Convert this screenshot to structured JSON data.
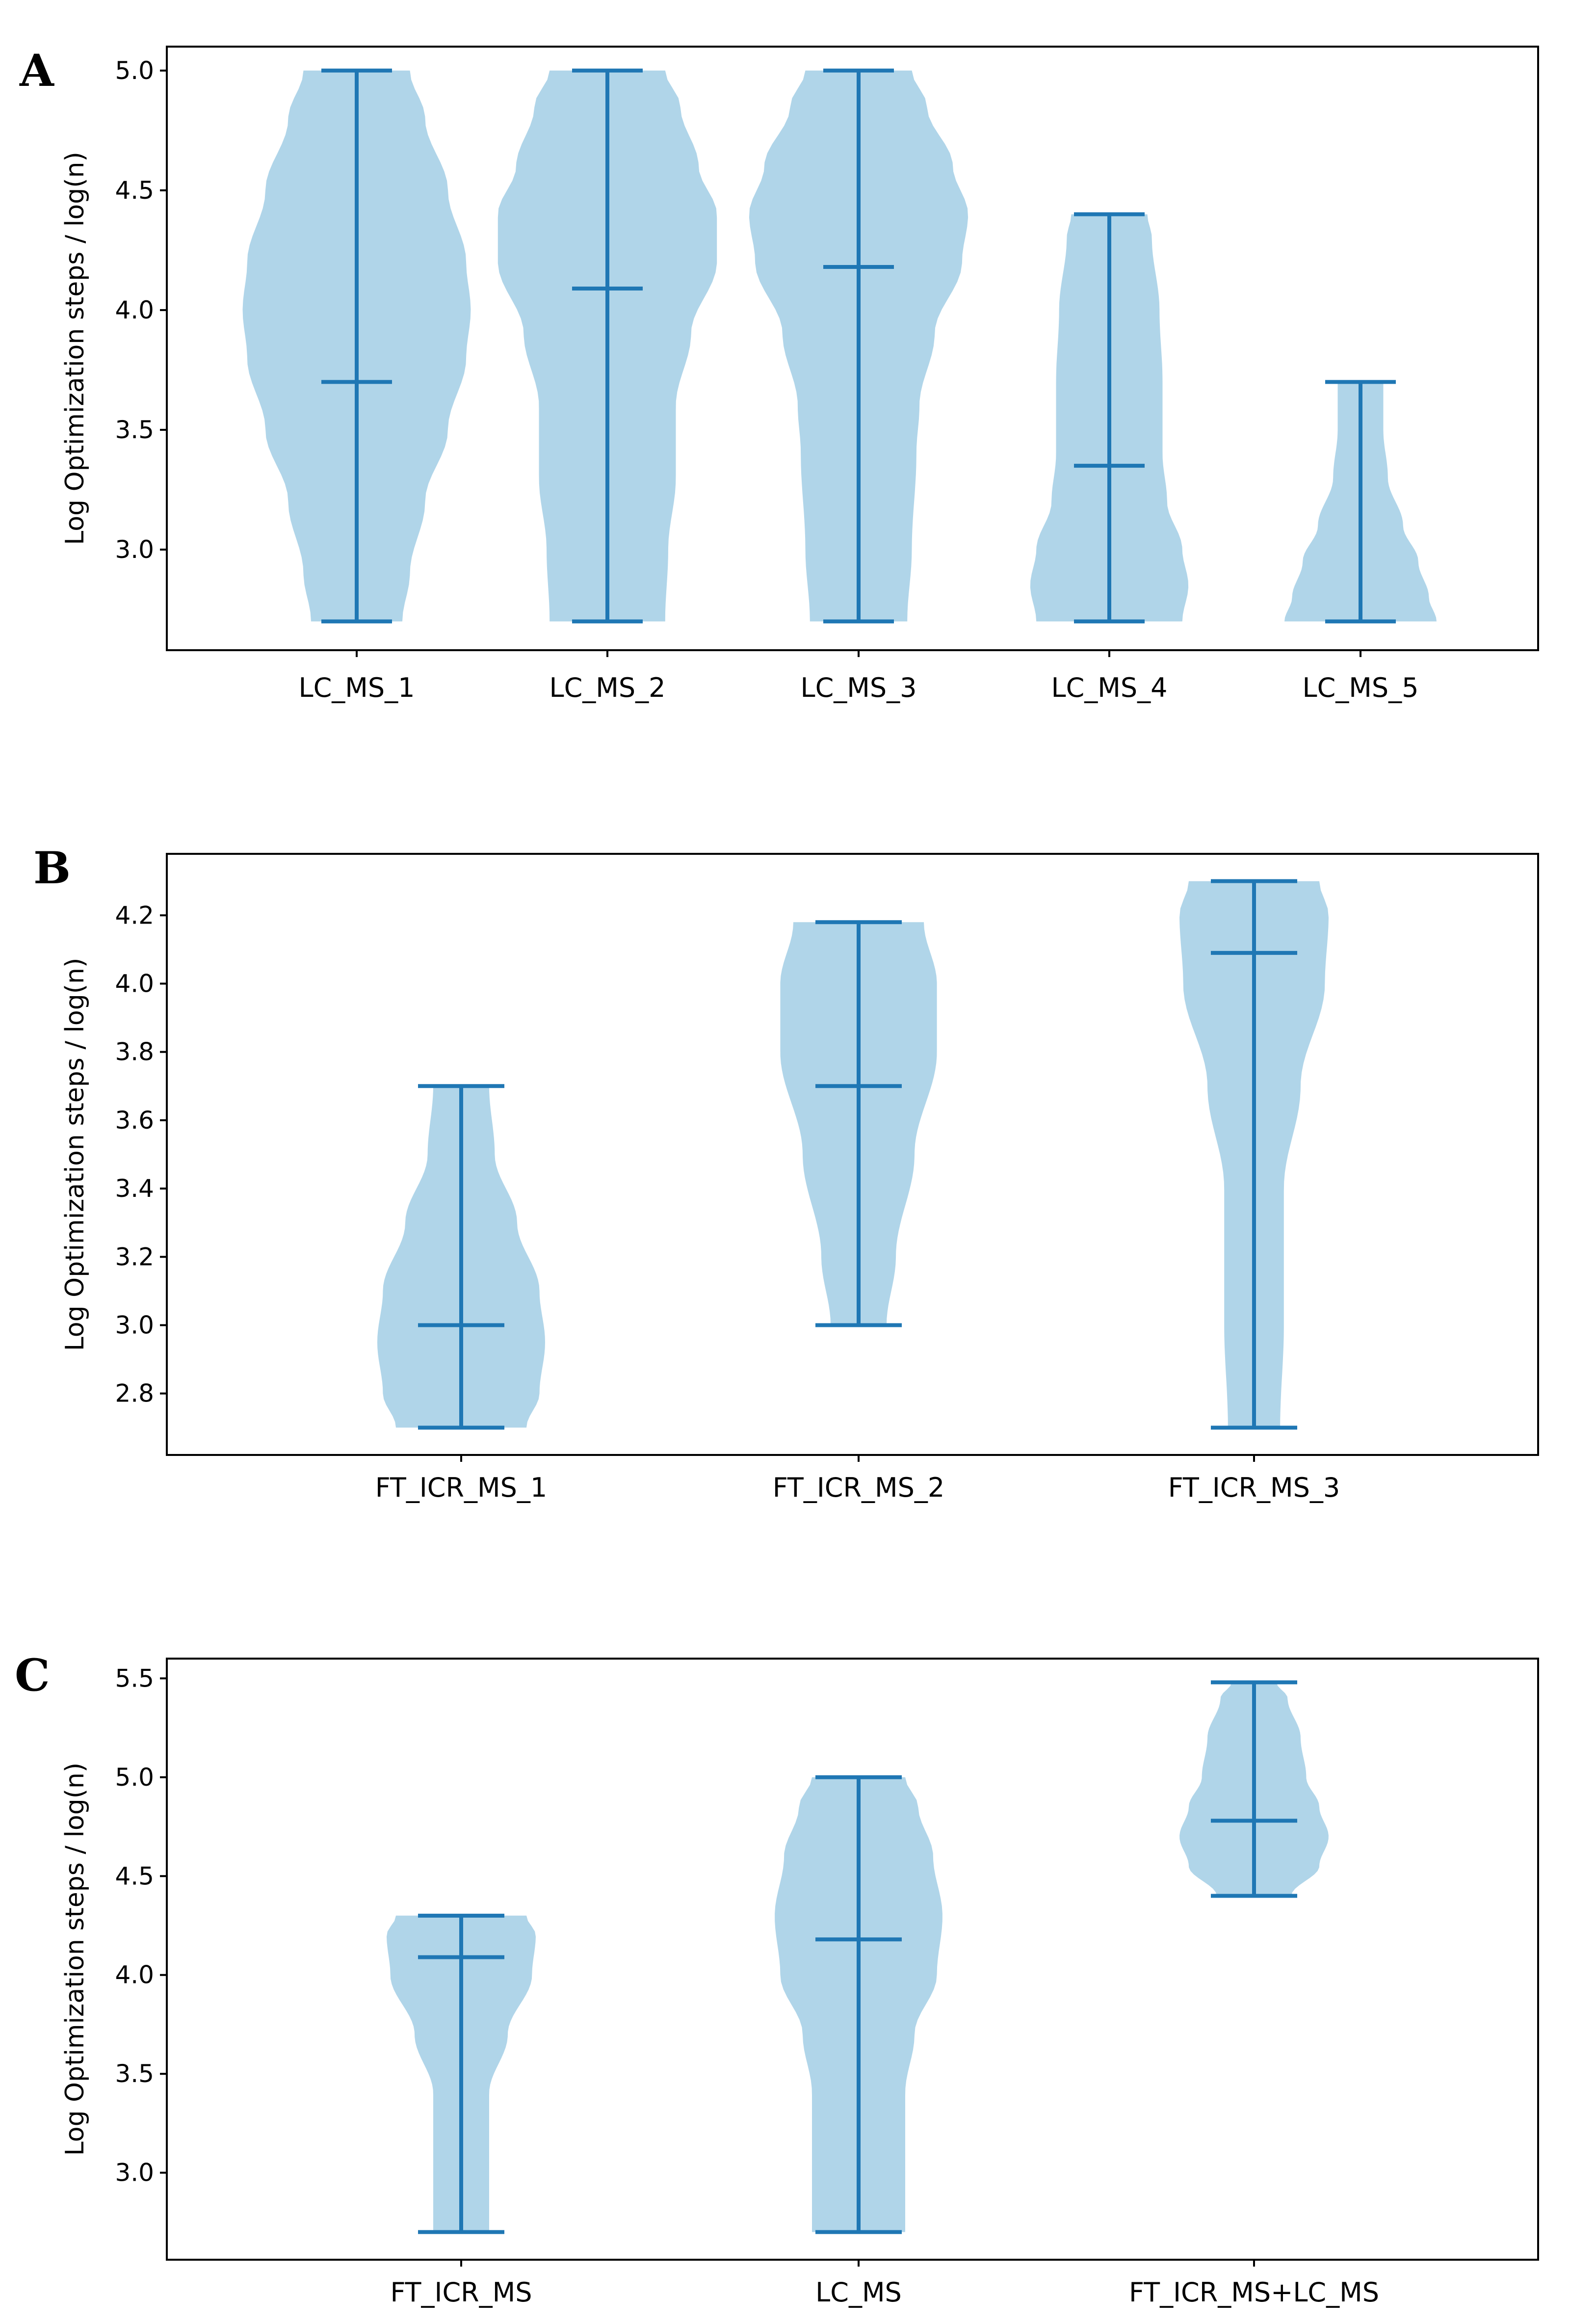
{
  "colors": {
    "body": "#b0d5e9",
    "stroke": "#1f77b4",
    "axis": "#000000"
  },
  "chart_data": [
    {
      "panel": "A",
      "type": "violin",
      "ylabel": "Log Optimization steps / log(n)",
      "ylim": [
        2.58,
        5.1
      ],
      "yticks": [
        3.0,
        3.5,
        4.0,
        4.5,
        5.0
      ],
      "ytick_labels": [
        "3.0",
        "3.5",
        "4.0",
        "4.5",
        "5.0"
      ],
      "categories": [
        "LC_MS_1",
        "LC_MS_2",
        "LC_MS_3",
        "LC_MS_4",
        "LC_MS_5"
      ],
      "series": [
        {
          "name": "LC_MS_1",
          "min": 2.7,
          "max": 5.0,
          "median": 3.7,
          "profile": [
            [
              2.7,
              0.3
            ],
            [
              2.9,
              0.35
            ],
            [
              3.2,
              0.45
            ],
            [
              3.5,
              0.6
            ],
            [
              3.8,
              0.72
            ],
            [
              4.0,
              0.75
            ],
            [
              4.2,
              0.72
            ],
            [
              4.5,
              0.6
            ],
            [
              4.8,
              0.45
            ],
            [
              5.0,
              0.35
            ]
          ]
        },
        {
          "name": "LC_MS_2",
          "min": 2.7,
          "max": 5.0,
          "median": 4.09,
          "profile": [
            [
              2.7,
              0.38
            ],
            [
              3.0,
              0.4
            ],
            [
              3.3,
              0.45
            ],
            [
              3.6,
              0.45
            ],
            [
              3.9,
              0.55
            ],
            [
              4.2,
              0.72
            ],
            [
              4.4,
              0.72
            ],
            [
              4.6,
              0.6
            ],
            [
              4.85,
              0.48
            ],
            [
              5.0,
              0.38
            ]
          ]
        },
        {
          "name": "LC_MS_3",
          "min": 2.7,
          "max": 5.0,
          "median": 4.18,
          "profile": [
            [
              2.7,
              0.32
            ],
            [
              3.0,
              0.35
            ],
            [
              3.4,
              0.38
            ],
            [
              3.6,
              0.4
            ],
            [
              3.9,
              0.5
            ],
            [
              4.2,
              0.68
            ],
            [
              4.4,
              0.72
            ],
            [
              4.6,
              0.62
            ],
            [
              4.85,
              0.45
            ],
            [
              5.0,
              0.35
            ]
          ]
        },
        {
          "name": "LC_MS_4",
          "min": 2.7,
          "max": 4.4,
          "median": 3.35,
          "profile": [
            [
              2.7,
              0.48
            ],
            [
              2.85,
              0.52
            ],
            [
              3.0,
              0.48
            ],
            [
              3.2,
              0.38
            ],
            [
              3.4,
              0.35
            ],
            [
              3.7,
              0.35
            ],
            [
              4.0,
              0.33
            ],
            [
              4.3,
              0.28
            ],
            [
              4.4,
              0.25
            ]
          ]
        },
        {
          "name": "LC_MS_5",
          "min": 2.7,
          "max": 3.7,
          "median": null,
          "profile": [
            [
              2.7,
              0.5
            ],
            [
              2.8,
              0.45
            ],
            [
              2.95,
              0.38
            ],
            [
              3.1,
              0.28
            ],
            [
              3.3,
              0.18
            ],
            [
              3.5,
              0.15
            ],
            [
              3.7,
              0.15
            ]
          ]
        }
      ]
    },
    {
      "panel": "B",
      "type": "violin",
      "ylabel": "Log Optimization steps / log(n)",
      "ylim": [
        2.62,
        4.38
      ],
      "yticks": [
        2.8,
        3.0,
        3.2,
        3.4,
        3.6,
        3.8,
        4.0,
        4.2
      ],
      "ytick_labels": [
        "2.8",
        "3.0",
        "3.2",
        "3.4",
        "3.6",
        "3.8",
        "4.0",
        "4.2"
      ],
      "categories": [
        "FT_ICR_MS_1",
        "FT_ICR_MS_2",
        "FT_ICR_MS_3"
      ],
      "series": [
        {
          "name": "FT_ICR_MS_1",
          "min": 2.7,
          "max": 3.7,
          "median": 3.0,
          "profile": [
            [
              2.7,
              0.35
            ],
            [
              2.8,
              0.42
            ],
            [
              2.95,
              0.45
            ],
            [
              3.1,
              0.42
            ],
            [
              3.3,
              0.3
            ],
            [
              3.5,
              0.18
            ],
            [
              3.7,
              0.15
            ]
          ]
        },
        {
          "name": "FT_ICR_MS_2",
          "min": 3.0,
          "max": 4.18,
          "median": 3.7,
          "profile": [
            [
              3.0,
              0.15
            ],
            [
              3.2,
              0.2
            ],
            [
              3.5,
              0.3
            ],
            [
              3.8,
              0.42
            ],
            [
              4.0,
              0.42
            ],
            [
              4.18,
              0.35
            ]
          ]
        },
        {
          "name": "FT_ICR_MS_3",
          "min": 2.7,
          "max": 4.3,
          "median": 4.09,
          "profile": [
            [
              2.7,
              0.14
            ],
            [
              3.0,
              0.16
            ],
            [
              3.4,
              0.16
            ],
            [
              3.7,
              0.25
            ],
            [
              4.0,
              0.38
            ],
            [
              4.2,
              0.4
            ],
            [
              4.3,
              0.35
            ]
          ]
        }
      ]
    },
    {
      "panel": "C",
      "type": "violin",
      "ylabel": "Log Optimization steps / log(n)",
      "ylim": [
        2.56,
        5.6
      ],
      "yticks": [
        3.0,
        3.5,
        4.0,
        4.5,
        5.0,
        5.5
      ],
      "ytick_labels": [
        "3.0",
        "3.5",
        "4.0",
        "4.5",
        "5.0",
        "5.5"
      ],
      "categories": [
        "FT_ICR_MS",
        "LC_MS",
        "FT_ICR_MS+LC_MS"
      ],
      "series": [
        {
          "name": "FT_ICR_MS",
          "min": 2.7,
          "max": 4.3,
          "median": 4.09,
          "profile": [
            [
              2.7,
              0.15
            ],
            [
              3.0,
              0.15
            ],
            [
              3.4,
              0.15
            ],
            [
              3.7,
              0.25
            ],
            [
              4.0,
              0.38
            ],
            [
              4.2,
              0.4
            ],
            [
              4.3,
              0.35
            ]
          ]
        },
        {
          "name": "LC_MS",
          "min": 2.7,
          "max": 5.0,
          "median": 4.18,
          "profile": [
            [
              2.7,
              0.25
            ],
            [
              3.0,
              0.25
            ],
            [
              3.4,
              0.25
            ],
            [
              3.7,
              0.3
            ],
            [
              4.0,
              0.42
            ],
            [
              4.3,
              0.45
            ],
            [
              4.6,
              0.4
            ],
            [
              4.85,
              0.32
            ],
            [
              5.0,
              0.25
            ]
          ]
        },
        {
          "name": "FT_ICR_MS+LC_MS",
          "min": 4.4,
          "max": 5.48,
          "median": 4.78,
          "profile": [
            [
              4.4,
              0.2
            ],
            [
              4.55,
              0.35
            ],
            [
              4.7,
              0.4
            ],
            [
              4.85,
              0.35
            ],
            [
              5.0,
              0.28
            ],
            [
              5.2,
              0.25
            ],
            [
              5.4,
              0.18
            ],
            [
              5.48,
              0.12
            ]
          ]
        }
      ]
    }
  ]
}
